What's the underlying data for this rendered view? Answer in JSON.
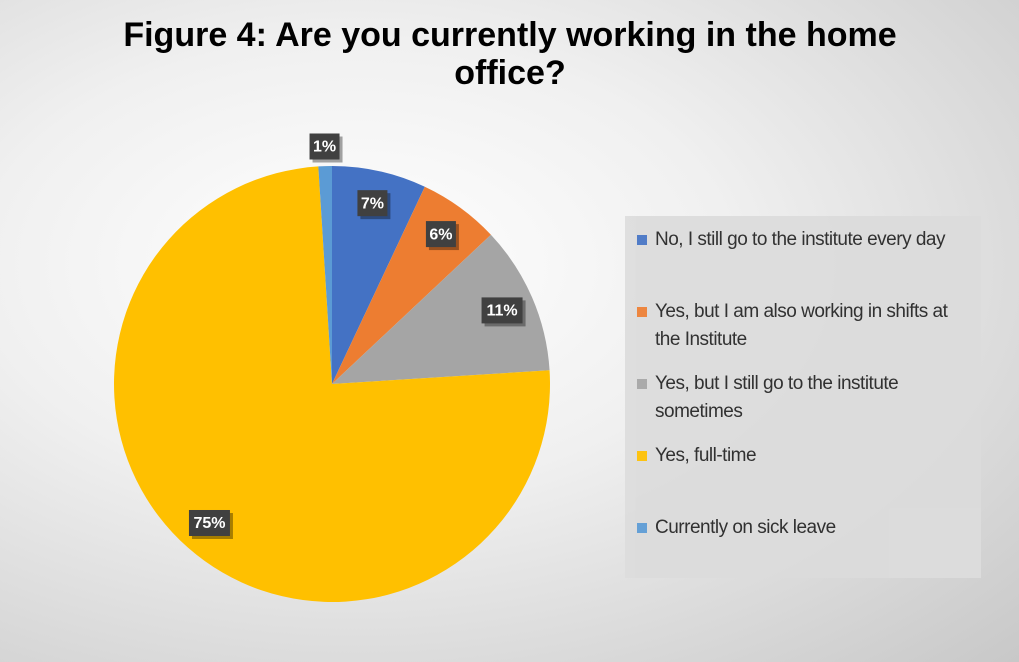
{
  "chart_data": {
    "type": "pie",
    "title": "Figure 4: Are you currently working in the home office?",
    "categories": [
      "No, I still go to the institute every day",
      "Yes, but I am also working in shifts at the Institute",
      "Yes, but I still go to the institute sometimes",
      "Yes, full-time",
      "Currently on sick leave"
    ],
    "values": [
      7,
      6,
      11,
      75,
      1
    ],
    "value_labels": [
      "7%",
      "6%",
      "11%",
      "75%",
      "1%"
    ],
    "colors": [
      "#4472c4",
      "#ed7d31",
      "#a5a5a5",
      "#ffc000",
      "#5b9bd5"
    ],
    "legend": "right"
  }
}
